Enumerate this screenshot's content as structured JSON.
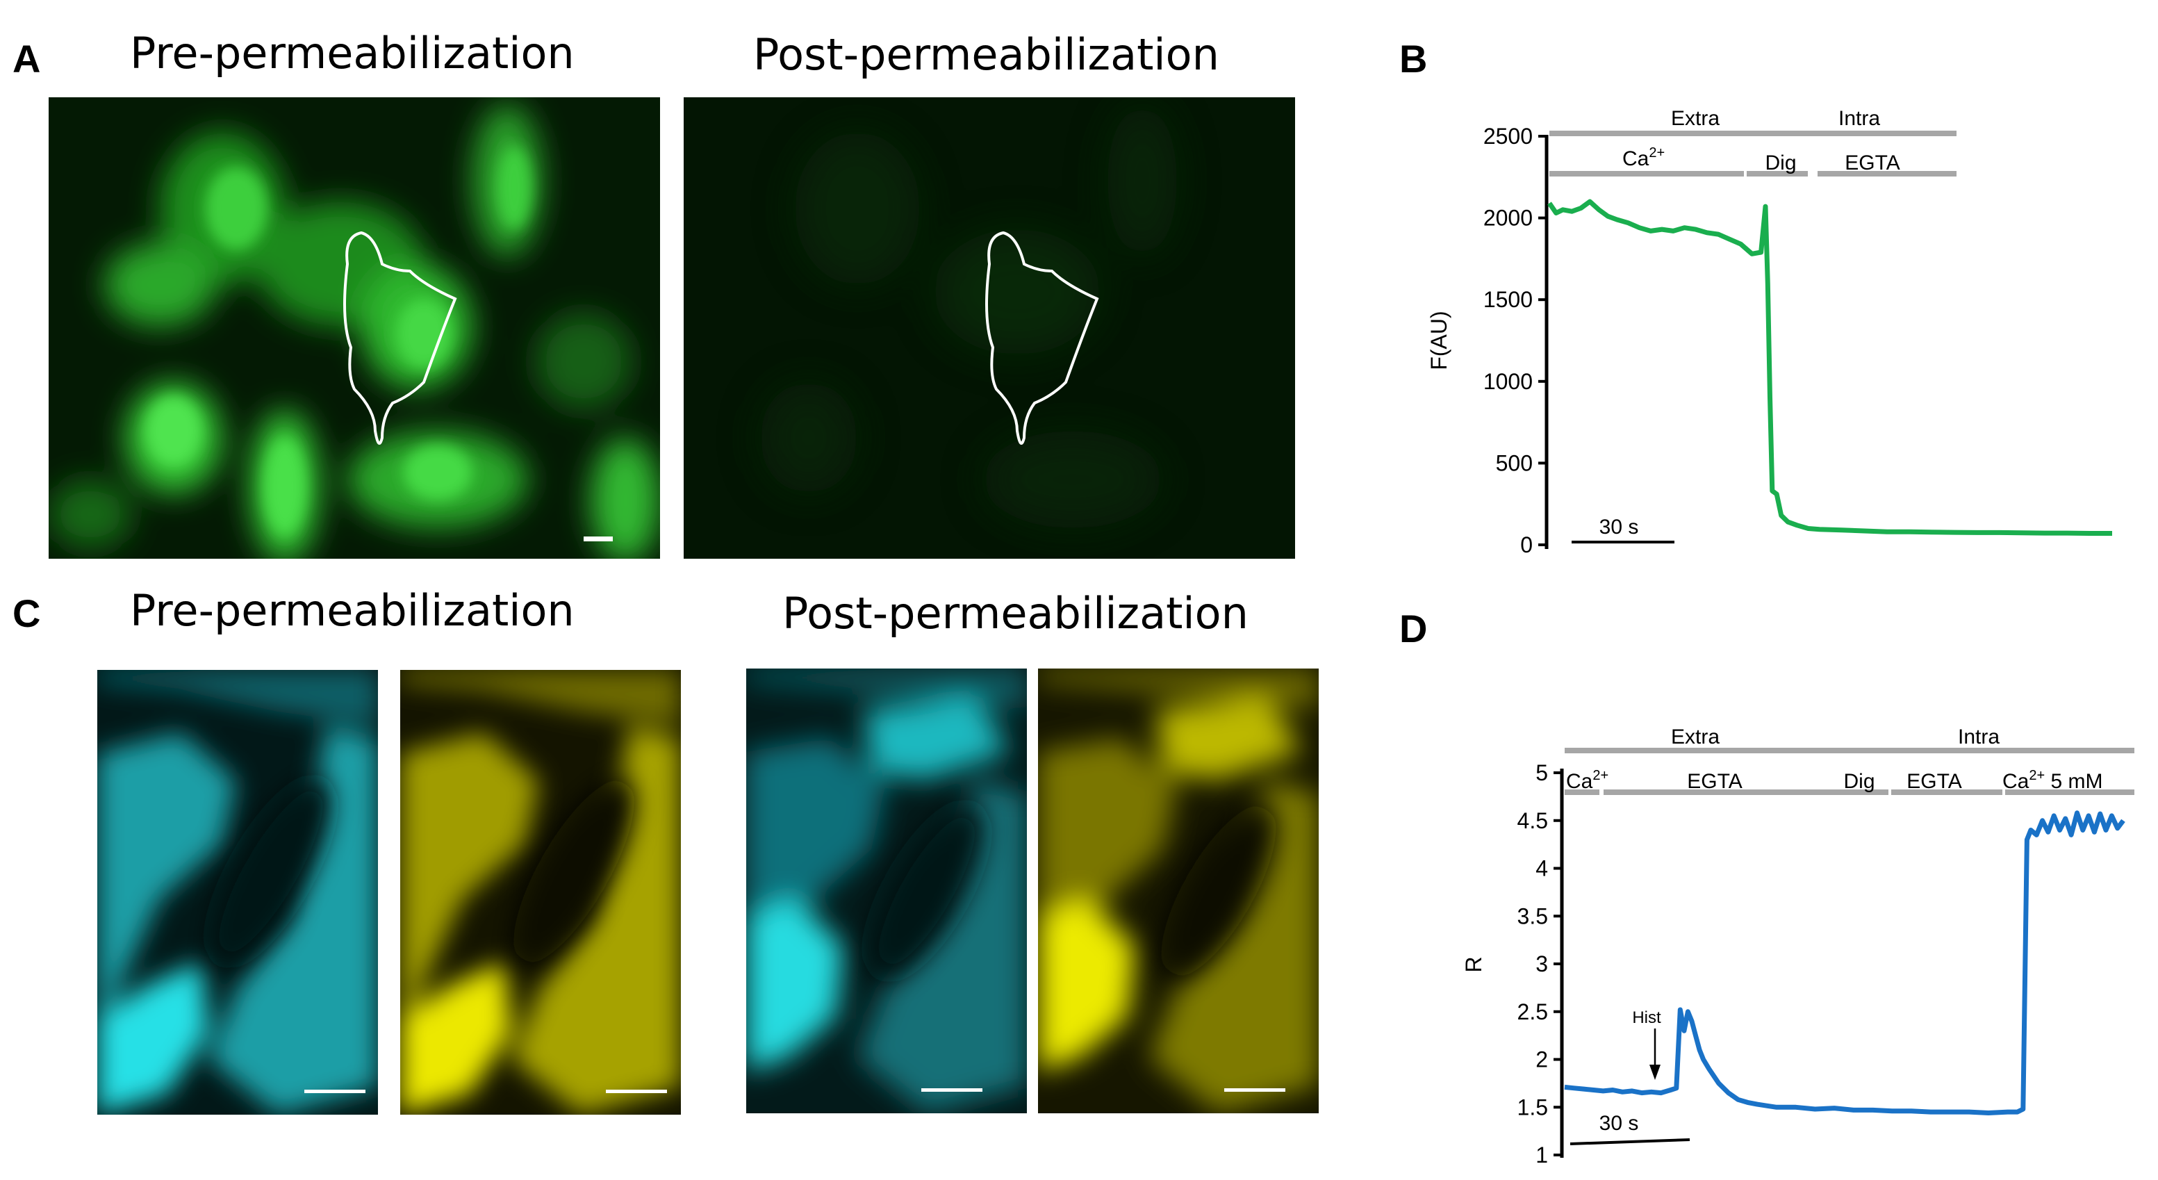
{
  "figure": {
    "panels": {
      "A": {
        "letter": "A",
        "left_title": "Pre-permeabilization",
        "right_title": "Post-permeabilization"
      },
      "B": {
        "letter": "B"
      },
      "C": {
        "letter": "C",
        "left_title": "Pre-permeabilization",
        "right_title": "Post-permeabilization"
      },
      "D": {
        "letter": "D"
      }
    }
  },
  "colors": {
    "green_trace": "#1aae4e",
    "blue_trace": "#1a72c7",
    "solution_bar": "#a6a6a6",
    "cyan_channel": "#22d6d6",
    "yellow_channel": "#e6e400"
  },
  "chart_data": [
    {
      "panel": "B",
      "type": "line",
      "ylabel": "F(AU)",
      "yticks": [
        "2500",
        "2000",
        "1500",
        "1000",
        "500",
        "0"
      ],
      "ylim": [
        0,
        2500
      ],
      "scale_bar": "30 s",
      "solution_bars": {
        "top": [
          "Extra",
          "Intra"
        ],
        "bottom": [
          "Ca2+",
          "Dig",
          "EGTA"
        ]
      },
      "labels": {
        "extra": "Extra",
        "intra": "Intra",
        "ca_base": "Ca",
        "ca_sup": "2+",
        "dig": "Dig",
        "egta": "EGTA"
      },
      "series": [
        {
          "x": [
            0,
            3,
            6,
            10,
            14,
            18,
            22,
            26,
            30,
            35,
            40,
            45,
            50,
            55,
            60,
            65,
            70,
            75,
            80,
            85,
            90,
            94,
            96,
            97,
            98,
            99,
            100,
            101,
            103,
            106,
            110,
            115,
            120,
            130,
            140,
            150,
            160,
            170,
            180,
            190,
            200,
            210,
            220,
            230,
            240,
            250
          ],
          "y": [
            2090,
            2030,
            2050,
            2040,
            2060,
            2100,
            2050,
            2010,
            1990,
            1970,
            1940,
            1920,
            1930,
            1920,
            1940,
            1930,
            1910,
            1900,
            1870,
            1840,
            1780,
            1790,
            2070,
            1600,
            900,
            330,
            320,
            310,
            180,
            140,
            120,
            100,
            95,
            90,
            85,
            80,
            80,
            78,
            76,
            75,
            75,
            73,
            72,
            72,
            70,
            70
          ]
        }
      ]
    },
    {
      "panel": "D",
      "type": "line",
      "ylabel": "R",
      "yticks": [
        "5",
        "4.5",
        "4",
        "3.5",
        "3",
        "2.5",
        "2",
        "1.5",
        "1"
      ],
      "ylim": [
        1,
        5
      ],
      "scale_bar": "30 s",
      "annotation": "Hist",
      "solution_bars": {
        "top": [
          "Extra",
          "Intra"
        ],
        "bottom": [
          "Ca2+",
          "EGTA",
          "Dig",
          "EGTA",
          "Ca2+ 5 mM"
        ]
      },
      "labels": {
        "extra": "Extra",
        "intra": "Intra",
        "ca_base": "Ca",
        "ca_sup": "2+",
        "egta1": "EGTA",
        "dig": "Dig",
        "egta2": "EGTA",
        "ca5_base": "Ca",
        "ca5_sup": "2+",
        "ca5_tail": " 5 mM"
      },
      "series": [
        {
          "x": [
            0,
            5,
            10,
            15,
            20,
            25,
            30,
            35,
            40,
            45,
            50,
            55,
            58,
            60,
            62,
            64,
            66,
            68,
            70,
            72,
            75,
            80,
            85,
            90,
            95,
            100,
            110,
            120,
            130,
            140,
            150,
            160,
            170,
            180,
            190,
            200,
            210,
            220,
            230,
            235,
            238,
            240,
            242,
            245,
            248,
            251,
            254,
            257,
            260,
            263,
            266,
            269,
            272,
            275,
            278,
            281,
            284,
            287,
            290
          ],
          "y": [
            1.71,
            1.7,
            1.69,
            1.68,
            1.67,
            1.68,
            1.66,
            1.67,
            1.65,
            1.66,
            1.65,
            1.68,
            1.7,
            2.52,
            2.3,
            2.5,
            2.4,
            2.25,
            2.1,
            2.0,
            1.9,
            1.75,
            1.65,
            1.58,
            1.55,
            1.53,
            1.5,
            1.5,
            1.48,
            1.49,
            1.47,
            1.47,
            1.46,
            1.46,
            1.45,
            1.45,
            1.45,
            1.44,
            1.45,
            1.45,
            1.48,
            4.3,
            4.4,
            4.35,
            4.5,
            4.38,
            4.55,
            4.4,
            4.52,
            4.35,
            4.58,
            4.4,
            4.55,
            4.38,
            4.57,
            4.4,
            4.55,
            4.42,
            4.5
          ]
        }
      ]
    }
  ]
}
